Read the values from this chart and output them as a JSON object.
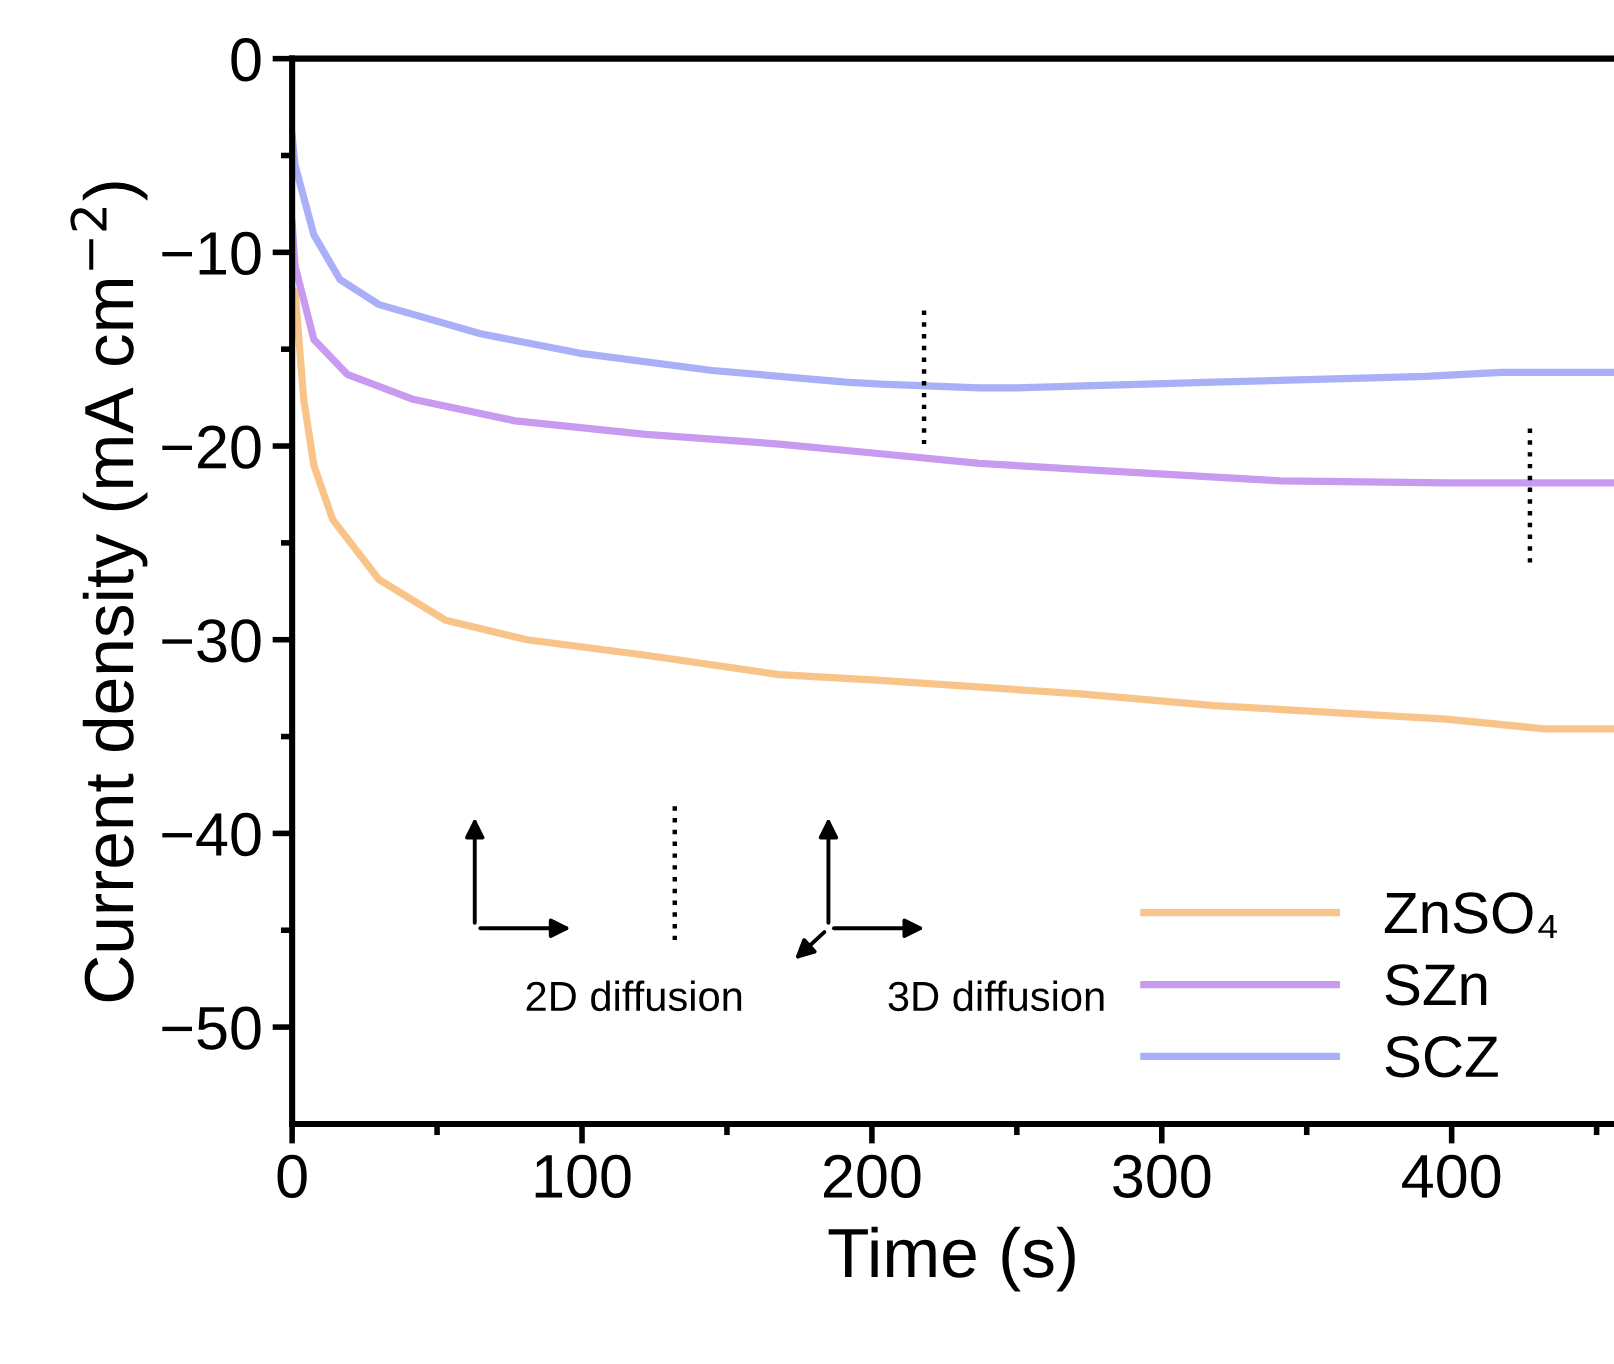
{
  "chart_data": {
    "type": "line",
    "xlabel": "Time (s)",
    "ylabel": "Current density (mA cm$^{−2}$)",
    "xlim": [
      0,
      456
    ],
    "ylim": [
      -55,
      0
    ],
    "xticks": [
      0,
      {
        "value": 50,
        "label": null
      },
      100,
      {
        "value": 150,
        "label": null
      },
      200,
      {
        "value": 250,
        "label": null
      },
      300,
      {
        "value": 350,
        "label": null
      },
      400,
      {
        "value": 450,
        "label": null
      }
    ],
    "yticks": [
      0,
      {
        "value": -5,
        "label": null
      },
      -10,
      {
        "value": -15,
        "label": null
      },
      -20,
      {
        "value": -25,
        "label": null
      },
      -30,
      {
        "value": -35,
        "label": null
      },
      -40,
      {
        "value": -45,
        "label": null
      },
      -50
    ],
    "grid": false,
    "legend": "bottom right",
    "line_style": "solid",
    "marker": "none",
    "annotations": [
      "2D diffusion",
      "3D diffusion"
    ],
    "series": [
      {
        "name": "ZnSO₄",
        "color": "#f9c48a",
        "x": [
          1,
          4,
          7.5,
          14,
          30,
          53,
          81,
          122,
          168,
          203,
          272,
          318,
          398,
          432,
          456
        ],
        "values": [
          -12,
          -17.6,
          -21,
          -23.8,
          -26.9,
          -29,
          -30,
          -30.8,
          -31.8,
          -32.1,
          -32.8,
          -33.4,
          -34.1,
          -34.6,
          -34.6
        ]
      },
      {
        "name": "SZn",
        "color": "#c89af0",
        "x": [
          0,
          1,
          7.5,
          19,
          42,
          77,
          122,
          168,
          203,
          237,
          272,
          341,
          398,
          456
        ],
        "values": [
          -8.5,
          -10.7,
          -14.5,
          -16.3,
          -17.6,
          -18.7,
          -19.4,
          -19.9,
          -20.4,
          -20.9,
          -21.2,
          -21.8,
          -21.9,
          -21.9
        ]
      },
      {
        "name": "SCZ",
        "color": "#aab0f8",
        "x": [
          0,
          1,
          7.5,
          16.5,
          30,
          65,
          99,
          145,
          191,
          203,
          237,
          249,
          318,
          391,
          417,
          456
        ],
        "values": [
          -4,
          -5.5,
          -9.1,
          -11.4,
          -12.7,
          -14.2,
          -15.2,
          -16.1,
          -16.7,
          -16.8,
          -17,
          -17,
          -16.7,
          -16.4,
          -16.2,
          -16.2
        ]
      },
      {
        "color": "#000000",
        "line_style": "dotted",
        "x": [
          218,
          218
        ],
        "values": [
          -13,
          -19.9
        ]
      },
      {
        "color": "#000000",
        "line_style": "dotted",
        "x": [
          427,
          427
        ],
        "values": [
          -19.1,
          -26.1
        ]
      },
      {
        "color": "#000000",
        "line_style": "dotted",
        "x": [
          132,
          132
        ],
        "values": [
          -38.6,
          -45.5
        ]
      }
    ]
  }
}
